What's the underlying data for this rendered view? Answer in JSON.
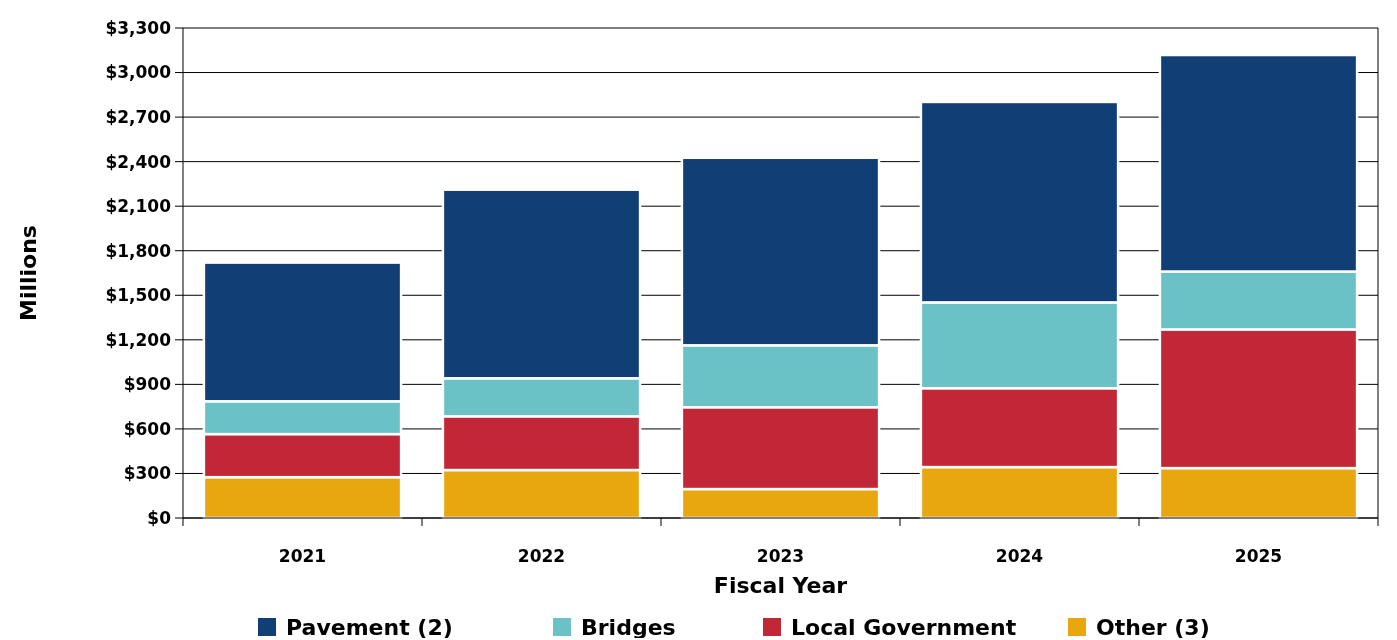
{
  "chart_data": {
    "type": "bar",
    "stacked": true,
    "xlabel": "Fiscal Year",
    "ylabel": "Millions",
    "categories": [
      "2021",
      "2022",
      "2023",
      "2024",
      "2025"
    ],
    "series": [
      {
        "name": "Other (3)",
        "color": "#e8a70f",
        "values": [
          275,
          323,
          195,
          343,
          336
        ]
      },
      {
        "name": "Local Government",
        "color": "#c22737",
        "values": [
          290,
          362,
          551,
          531,
          934
        ]
      },
      {
        "name": "Bridges",
        "color": "#6ac2c6",
        "values": [
          221,
          256,
          417,
          578,
          390
        ]
      },
      {
        "name": "Pavement (2)",
        "color": "#113f75",
        "values": [
          934,
          1270,
          1263,
          1350,
          1458
        ]
      }
    ],
    "ylim": [
      0,
      3300
    ],
    "yticks": [
      {
        "value": 0,
        "label": "$0"
      },
      {
        "value": 300,
        "label": "$300"
      },
      {
        "value": 600,
        "label": "$600"
      },
      {
        "value": 900,
        "label": "$900"
      },
      {
        "value": 1200,
        "label": "$1,200"
      },
      {
        "value": 1500,
        "label": "$1,500"
      },
      {
        "value": 1800,
        "label": "$1,800"
      },
      {
        "value": 2100,
        "label": "$2,100"
      },
      {
        "value": 2400,
        "label": "$2,400"
      },
      {
        "value": 2700,
        "label": "$2,700"
      },
      {
        "value": 3000,
        "label": "$3,000"
      },
      {
        "value": 3300,
        "label": "$3,300"
      }
    ],
    "grid": "y",
    "legend": "bottom"
  }
}
